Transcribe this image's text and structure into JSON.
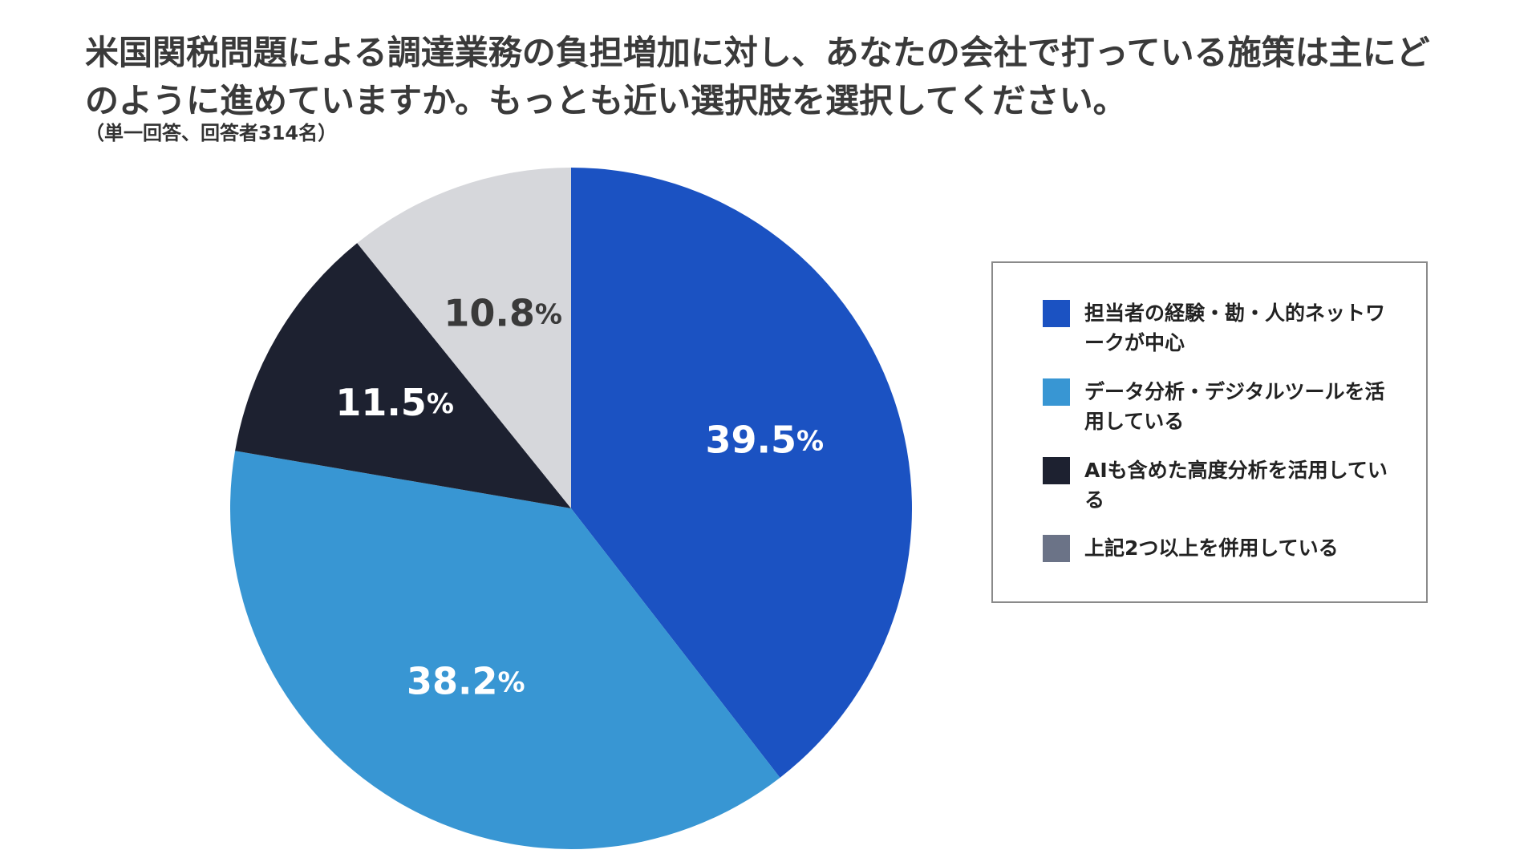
{
  "title": "米国関税問題による調達業務の負担増加に対し、あなたの会社で打っている施策は主にどのように進めていますか。もっとも近い選択肢を選択してください。",
  "subtitle": "（単一回答、回答者314名）",
  "chart_data": {
    "type": "pie",
    "title": "米国関税問題による調達業務の負担増加に対し、あなたの会社で打っている施策は主にどのように進めていますか。もっとも近い選択肢を選択してください。",
    "note": "（単一回答、回答者314名）",
    "slices": [
      {
        "label": "担当者の経験・勘・人的ネットワークが中心",
        "value": 39.5,
        "display": "39.5",
        "unit": "%",
        "color": "#1b52c2",
        "label_color": "#ffffff"
      },
      {
        "label": "データ分析・デジタルツールを活用している",
        "value": 38.2,
        "display": "38.2",
        "unit": "%",
        "color": "#3896d3",
        "label_color": "#ffffff"
      },
      {
        "label": "AIも含めた高度分析を活用している",
        "value": 11.5,
        "display": "11.5",
        "unit": "%",
        "color": "#1d2130",
        "label_color": "#ffffff"
      },
      {
        "label": "上記2つ以上を併用している",
        "value": 10.8,
        "display": "10.8",
        "unit": "%",
        "color": "#d6d7db",
        "label_color": "#3a3a3a"
      }
    ],
    "legend_position": "right",
    "legend": [
      {
        "text": "担当者の経験・勘・人的ネットワークが中心",
        "color": "#1b52c2"
      },
      {
        "text": "データ分析・デジタルツールを活用している",
        "color": "#3896d3"
      },
      {
        "text": "AIも含めた高度分析を活用している",
        "color": "#1d2130"
      },
      {
        "text": "上記2つ以上を併用している",
        "color": "#6b7387"
      }
    ]
  }
}
